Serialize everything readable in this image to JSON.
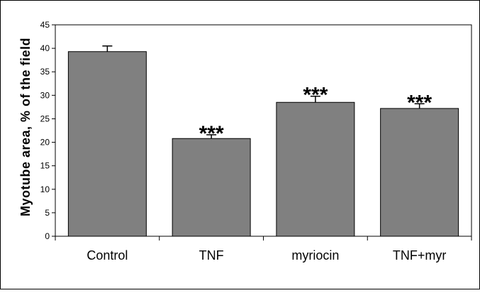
{
  "chart_data": {
    "type": "bar",
    "title": "",
    "xlabel": "",
    "ylabel": "Myotube area, % of the field",
    "categories": [
      "Control",
      "TNF",
      "myriocin",
      "TNF+myr"
    ],
    "values": [
      39.3,
      20.8,
      28.5,
      27.2
    ],
    "errors": [
      1.2,
      0.8,
      1.3,
      1.0
    ],
    "annotations": [
      "",
      "***",
      "***",
      "***"
    ],
    "ylim": [
      0,
      45
    ],
    "yticks": [
      0,
      5,
      10,
      15,
      20,
      25,
      30,
      35,
      40,
      45
    ],
    "bar_color": "#808080",
    "grid": false,
    "legend": "none"
  }
}
